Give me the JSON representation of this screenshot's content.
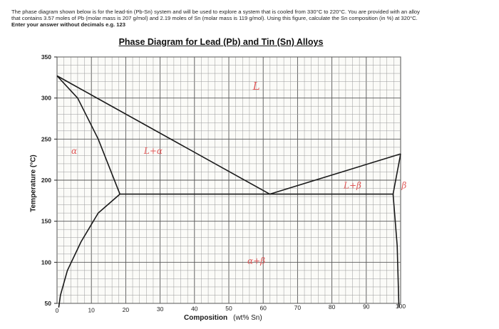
{
  "question": {
    "line1": "The phase diagram shown below is for the lead-tin (Pb-Sn) system and will be used to explore a system that is cooled from 330°C to 220°C. You are provided with an alloy",
    "line2": "that contains 3.57 moles of Pb (molar mass is 207 g/mol) and 2.19 moles of Sn (molar mass is 119 g/mol). Using this figure, calculate the Sn composition (in %) at 320°C.",
    "line3": "Enter your answer without decimals e.g. 123"
  },
  "chart_data": {
    "type": "line",
    "title": "Phase Diagram for Lead (Pb) and Tin (Sn) Alloys",
    "xlabel": "Composition",
    "xlabel_unit": "(wt% Sn)",
    "ylabel": "Temperature (°C)",
    "xlim": [
      0,
      100
    ],
    "ylim": [
      50,
      350
    ],
    "xticks": [
      0,
      10,
      20,
      30,
      40,
      50,
      60,
      70,
      80,
      90,
      100
    ],
    "yticks": [
      50,
      100,
      150,
      200,
      250,
      300,
      350
    ],
    "grid": true,
    "lines": [
      {
        "name": "liquidus-left",
        "points": [
          [
            0,
            327
          ],
          [
            61.9,
            183
          ]
        ]
      },
      {
        "name": "liquidus-right",
        "points": [
          [
            61.9,
            183
          ],
          [
            100,
            232
          ]
        ]
      },
      {
        "name": "solidus-left",
        "points": [
          [
            0,
            327
          ],
          [
            6,
            300
          ],
          [
            12,
            250
          ],
          [
            18.3,
            183
          ]
        ]
      },
      {
        "name": "solvus-left",
        "points": [
          [
            18.3,
            183
          ],
          [
            12,
            160
          ],
          [
            7,
            125
          ],
          [
            3,
            90
          ],
          [
            1,
            60
          ],
          [
            0.5,
            45
          ]
        ]
      },
      {
        "name": "eutectic",
        "points": [
          [
            18.3,
            183
          ],
          [
            97.8,
            183
          ]
        ]
      },
      {
        "name": "solidus-right",
        "points": [
          [
            97.8,
            183
          ],
          [
            100,
            232
          ]
        ]
      },
      {
        "name": "solvus-right",
        "points": [
          [
            97.8,
            183
          ],
          [
            99,
            120
          ],
          [
            99.5,
            45
          ]
        ]
      }
    ],
    "regions": [
      {
        "label": "L",
        "x": 58,
        "y": 310
      },
      {
        "label": "α",
        "x": 5,
        "y": 232
      },
      {
        "label": "L+α",
        "x": 28,
        "y": 232
      },
      {
        "label": "L+β",
        "x": 86,
        "y": 190
      },
      {
        "label": "β",
        "x": 101,
        "y": 190
      },
      {
        "label": "α+β",
        "x": 58,
        "y": 98
      }
    ]
  }
}
